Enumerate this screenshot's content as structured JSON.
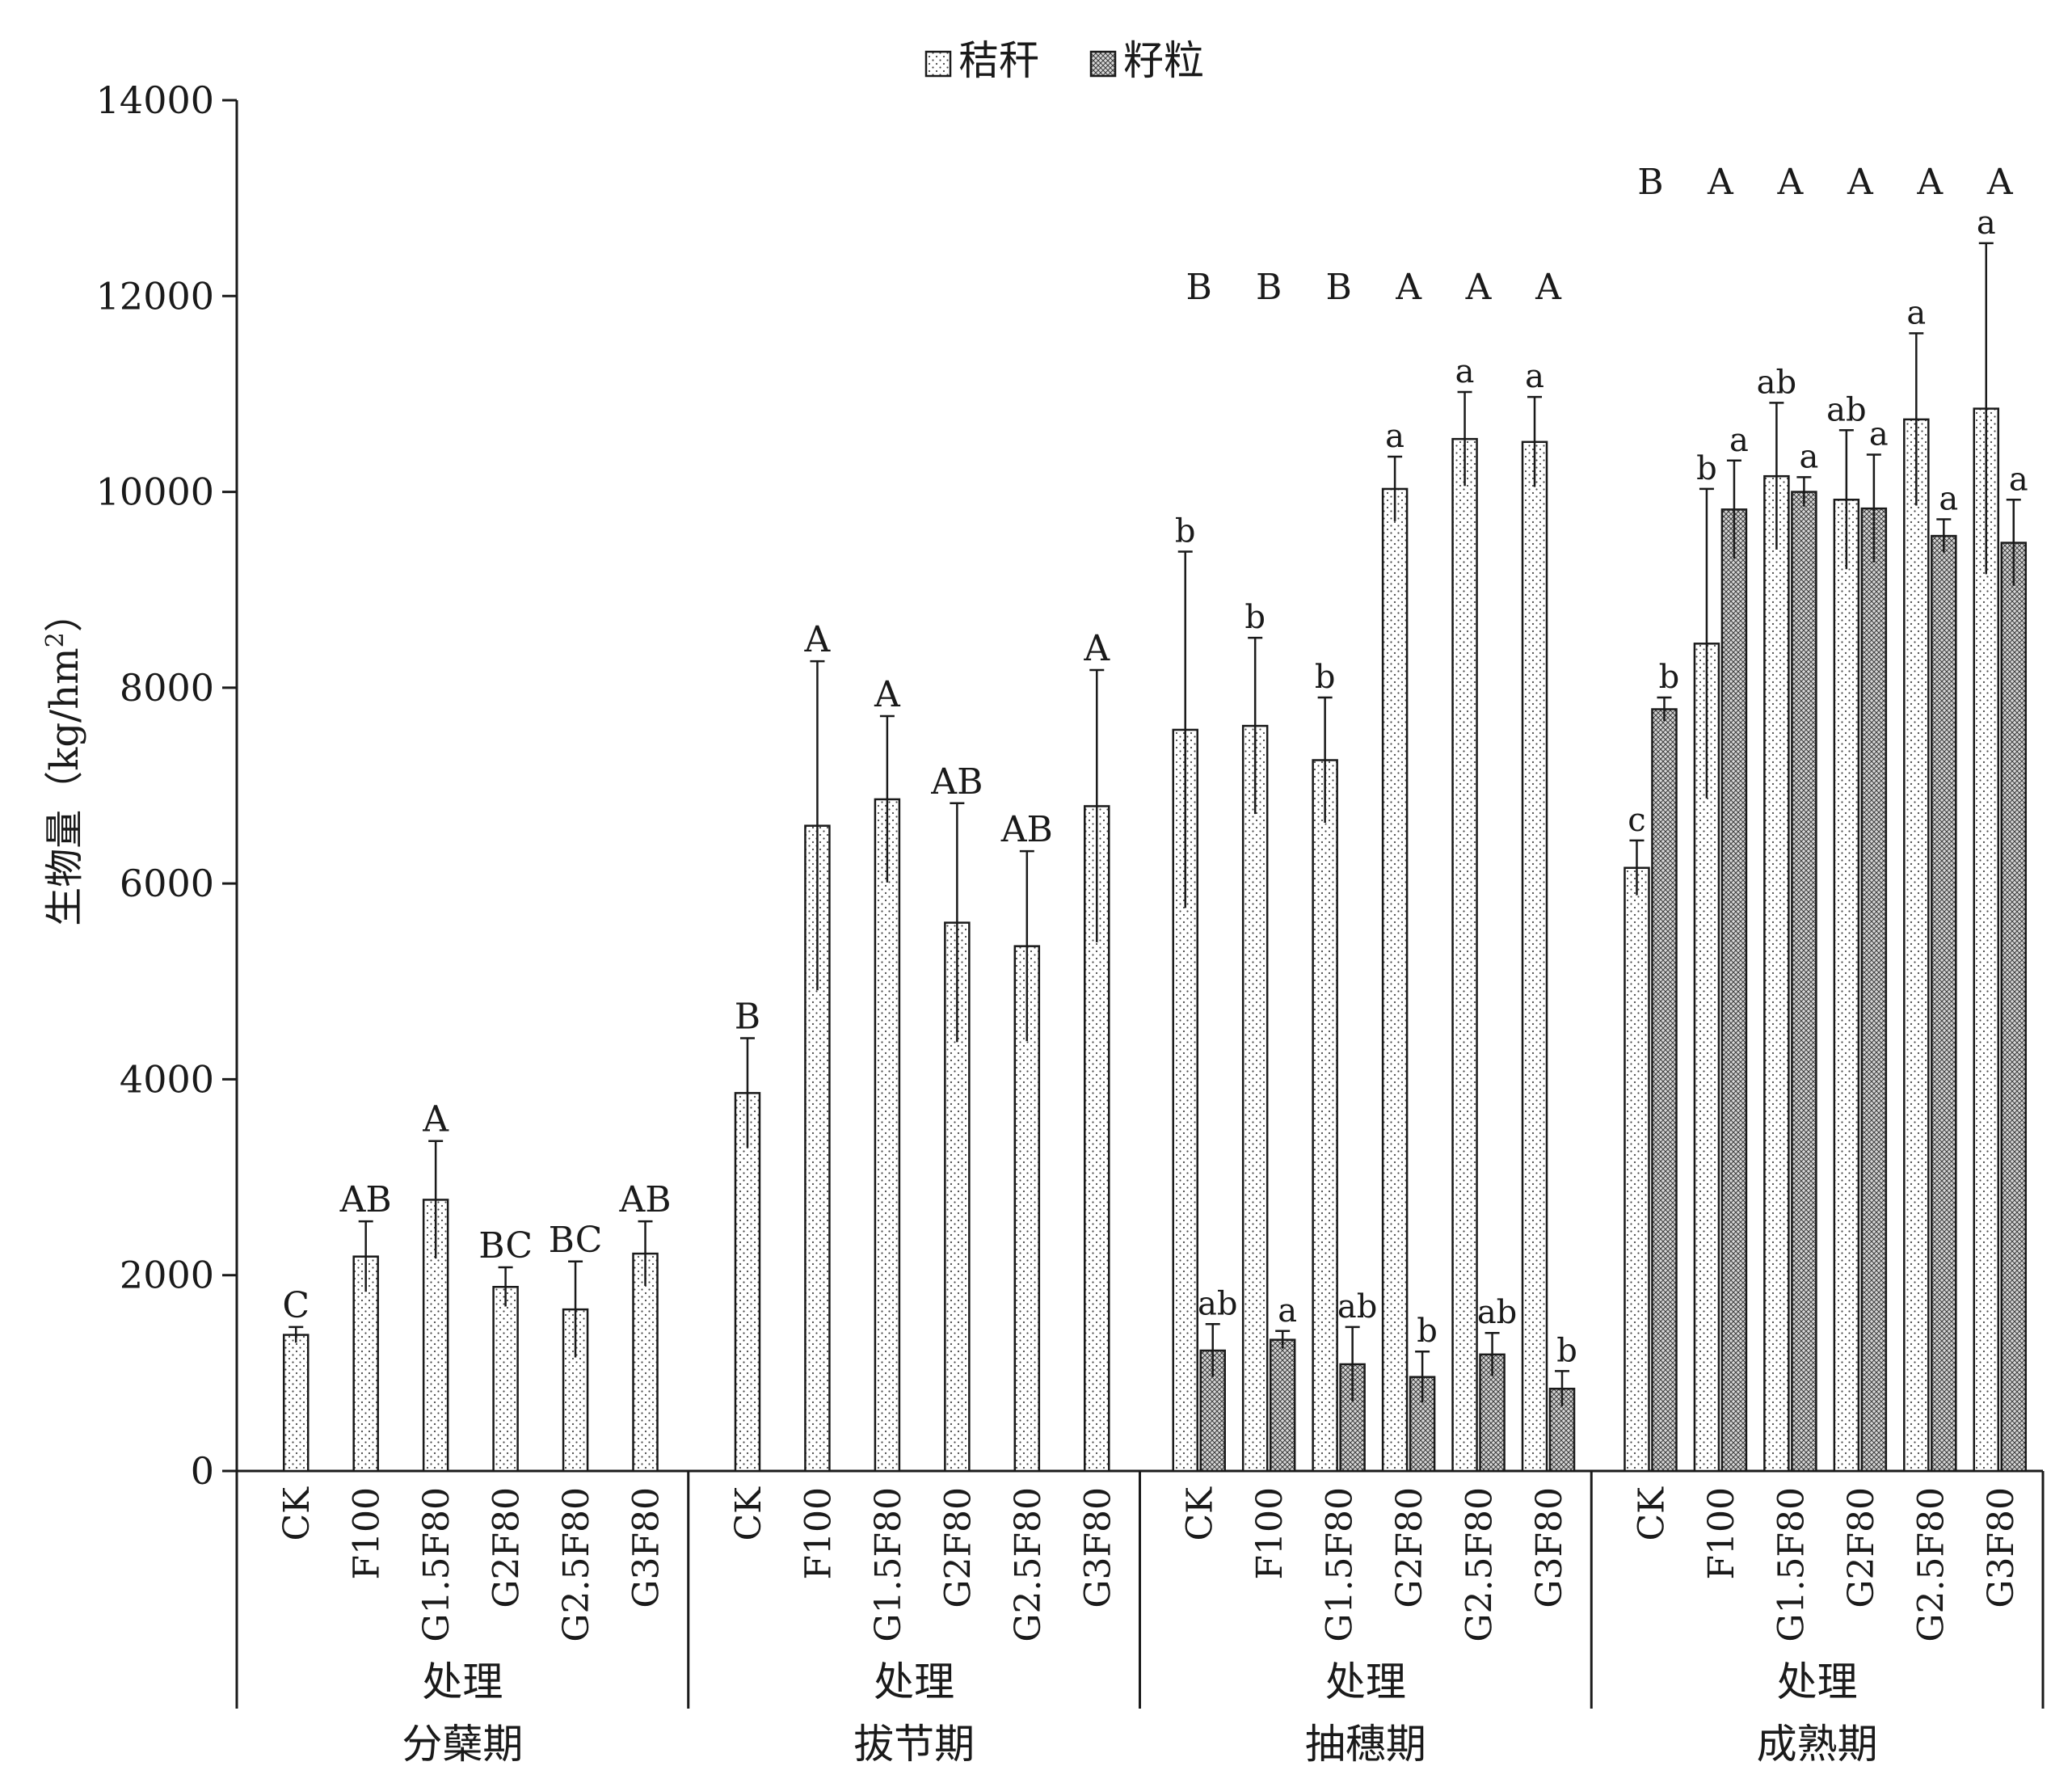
{
  "chart_data": {
    "type": "bar",
    "title": "",
    "ylabel": "生物量（kg/hm²）",
    "ylabel_parts": {
      "main": "生物量（kg/hm",
      "sup": "2",
      "close": "）"
    },
    "ylim": [
      0,
      14000
    ],
    "yticks": [
      "0",
      "2000",
      "4000",
      "6000",
      "8000",
      "10000",
      "12000",
      "14000"
    ],
    "grid": false,
    "legend_position": "top-center",
    "legend": [
      {
        "key": "straw",
        "label": "秸秆"
      },
      {
        "key": "grain",
        "label": "籽粒"
      }
    ],
    "categories": [
      "CK",
      "F100",
      "G1.5F80",
      "G2F80",
      "G2.5F80",
      "G3F80"
    ],
    "group_axis_label": "处理",
    "groups": [
      {
        "stage": "分蘖期",
        "axis_label": "处理",
        "group_letters": [],
        "straw": [
          1390,
          2190,
          2770,
          1880,
          1650,
          2220
        ],
        "straw_err": [
          80,
          360,
          600,
          200,
          490,
          330
        ],
        "straw_letters": [
          "C",
          "AB",
          "A",
          "BC",
          "BC",
          "AB"
        ],
        "grain": [
          null,
          null,
          null,
          null,
          null,
          null
        ],
        "grain_err": [
          null,
          null,
          null,
          null,
          null,
          null
        ],
        "grain_letters": [
          "",
          "",
          "",
          "",
          "",
          ""
        ]
      },
      {
        "stage": "拔节期",
        "axis_label": "处理",
        "group_letters": [],
        "straw": [
          3860,
          6590,
          6860,
          5600,
          5360,
          6790
        ],
        "straw_err": [
          560,
          1680,
          850,
          1220,
          970,
          1390
        ],
        "straw_letters": [
          "B",
          "A",
          "A",
          "AB",
          "AB",
          "A"
        ],
        "grain": [
          null,
          null,
          null,
          null,
          null,
          null
        ],
        "grain_err": [
          null,
          null,
          null,
          null,
          null,
          null
        ],
        "grain_letters": [
          "",
          "",
          "",
          "",
          "",
          ""
        ]
      },
      {
        "stage": "抽穗期",
        "axis_label": "处理",
        "group_letters": [
          "B",
          "B",
          "B",
          "A",
          "A",
          "A"
        ],
        "straw": [
          7570,
          7610,
          7260,
          10030,
          10540,
          10510
        ],
        "straw_err": [
          1820,
          900,
          640,
          330,
          480,
          460
        ],
        "straw_letters": [
          "b",
          "b",
          "b",
          "a",
          "a",
          "a"
        ],
        "grain": [
          1230,
          1340,
          1090,
          960,
          1190,
          840
        ],
        "grain_err": [
          270,
          90,
          380,
          260,
          220,
          180
        ],
        "grain_letters": [
          "ab",
          "a",
          "ab",
          "b",
          "ab",
          "b"
        ]
      },
      {
        "stage": "成熟期",
        "axis_label": "处理",
        "group_letters": [
          "B",
          "A",
          "A",
          "A",
          "A",
          "A"
        ],
        "straw": [
          6160,
          8450,
          10160,
          9920,
          10740,
          10850
        ],
        "straw_err": [
          280,
          1580,
          750,
          710,
          880,
          1690
        ],
        "straw_letters": [
          "c",
          "b",
          "ab",
          "ab",
          "a",
          "a"
        ],
        "grain": [
          7780,
          9820,
          10000,
          9830,
          9550,
          9480
        ],
        "grain_err": [
          120,
          500,
          150,
          550,
          170,
          440
        ],
        "grain_letters": [
          "b",
          "a",
          "a",
          "a",
          "a",
          "a"
        ]
      }
    ]
  }
}
